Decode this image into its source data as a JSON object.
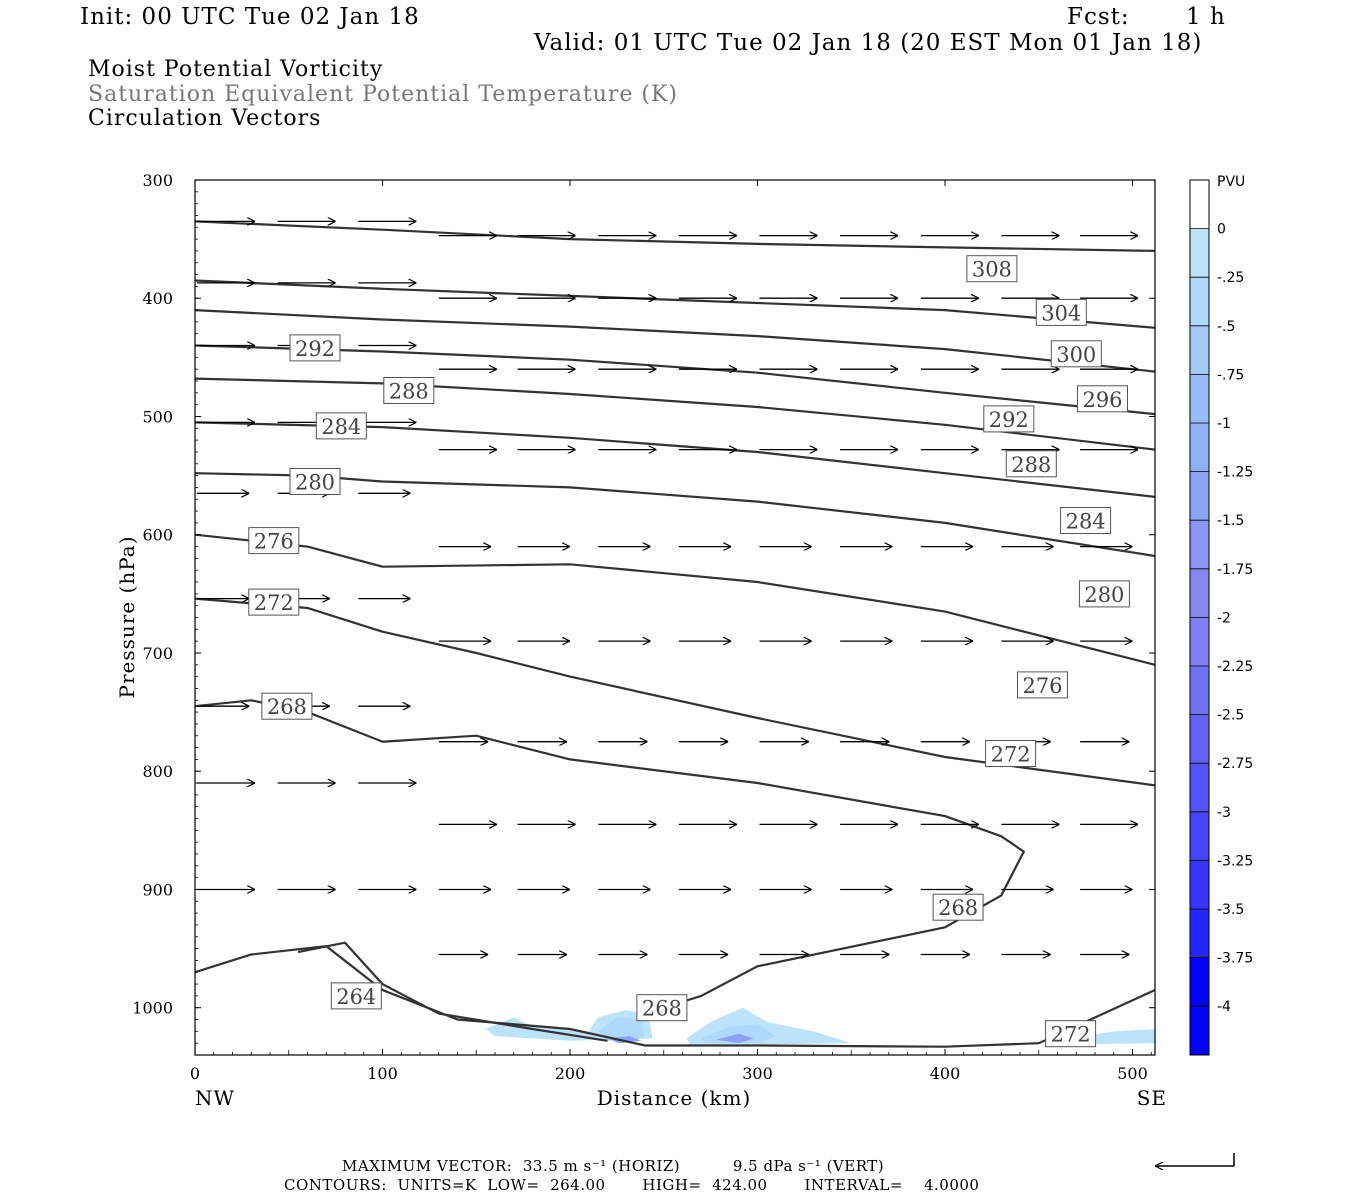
{
  "header": {
    "init": "Init: 00 UTC Tue 02 Jan 18",
    "fcst_label": "Fcst:",
    "fcst_value": "1 h",
    "valid": "Valid: 01 UTC Tue 02 Jan 18 (20 EST Mon 01 Jan 18)"
  },
  "fields": {
    "line1": "Moist Potential Vorticity",
    "line2": "Saturation Equivalent Potential Temperature (K)",
    "line3": "Circulation Vectors"
  },
  "footer": {
    "max_vector": "MAXIMUM VECTOR:  33.5 m s⁻¹ (HORIZ)          9.5 dPa s⁻¹ (VERT)",
    "contours": "CONTOURS:  UNITS=K  LOW=  264.00       HIGH=  424.00       INTERVAL=    4.0000"
  },
  "colors": {
    "contour": "#333333",
    "pv_light": "#bde3fb",
    "pv_mid": "#8f8ff2",
    "pv_dark": "#0000ff"
  },
  "chart_data": {
    "type": "cross-section",
    "xlabel": "Distance (km)",
    "ylabel": "Pressure (hPa)",
    "xlim": [
      0,
      512
    ],
    "ylim": [
      300,
      1040
    ],
    "y_reversed": true,
    "x_ticks": [
      "0",
      "100",
      "200",
      "300",
      "400",
      "500"
    ],
    "y_ticks": [
      "300",
      "400",
      "500",
      "600",
      "700",
      "800",
      "900",
      "1000"
    ],
    "x_end_labels": {
      "left": "NW",
      "right": "SE"
    },
    "colorbar": {
      "title": "PVU",
      "labels": [
        "0",
        "-.25",
        "-.5",
        "-.75",
        "-1",
        "-1.25",
        "-1.5",
        "-1.75",
        "-2",
        "-2.25",
        "-2.5",
        "-2.75",
        "-3",
        "-3.25",
        "-3.5",
        "-3.75",
        "-4"
      ],
      "colors": [
        "#ffffff",
        "#bde3fb",
        "#b0d8fa",
        "#a4cbf8",
        "#98bdf6",
        "#90b0f5",
        "#8ca2f4",
        "#8a95f3",
        "#8787f2",
        "#7f7ff3",
        "#7070f4",
        "#6262f6",
        "#5454f8",
        "#4545f9",
        "#3535fb",
        "#2424fc",
        "#0000ff"
      ]
    },
    "contours": [
      {
        "label": "308",
        "points": [
          [
            0,
            335
          ],
          [
            100,
            342
          ],
          [
            200,
            350
          ],
          [
            300,
            354
          ],
          [
            400,
            357
          ],
          [
            512,
            360
          ]
        ],
        "label_at": [
          425,
          375
        ]
      },
      {
        "label": "304",
        "points": [
          [
            0,
            385
          ],
          [
            100,
            392
          ],
          [
            200,
            398
          ],
          [
            300,
            404
          ],
          [
            400,
            410
          ],
          [
            512,
            425
          ]
        ],
        "label_at": [
          462,
          412
        ]
      },
      {
        "label": "300",
        "points": [
          [
            0,
            410
          ],
          [
            100,
            418
          ],
          [
            200,
            424
          ],
          [
            300,
            432
          ],
          [
            400,
            443
          ],
          [
            512,
            462
          ]
        ],
        "label_at": [
          470,
          447
        ]
      },
      {
        "label": "296",
        "points": [
          [
            0,
            440
          ],
          [
            100,
            445
          ],
          [
            200,
            452
          ],
          [
            300,
            463
          ],
          [
            400,
            480
          ],
          [
            512,
            498
          ]
        ],
        "label_at": [
          484,
          485
        ]
      },
      {
        "label": "292",
        "points": [
          [
            0,
            468
          ],
          [
            100,
            472
          ],
          [
            200,
            481
          ],
          [
            300,
            492
          ],
          [
            400,
            507
          ],
          [
            512,
            528
          ]
        ],
        "label_at": [
          434,
          502
        ]
      },
      {
        "label": "288",
        "points": [
          [
            0,
            505
          ],
          [
            100,
            509
          ],
          [
            200,
            518
          ],
          [
            300,
            530
          ],
          [
            400,
            548
          ],
          [
            512,
            568
          ]
        ],
        "label_at": [
          446,
          540
        ]
      },
      {
        "label": "284",
        "points": [
          [
            0,
            548
          ],
          [
            60,
            550
          ],
          [
            100,
            555
          ],
          [
            200,
            560
          ],
          [
            300,
            572
          ],
          [
            400,
            590
          ],
          [
            512,
            618
          ]
        ],
        "label_at": [
          475,
          588
        ]
      },
      {
        "label": "280",
        "points": [
          [
            0,
            600
          ],
          [
            60,
            610
          ],
          [
            100,
            627
          ],
          [
            200,
            625
          ],
          [
            300,
            640
          ],
          [
            400,
            665
          ],
          [
            512,
            710
          ]
        ],
        "label_at": [
          485,
          650
        ]
      },
      {
        "label": "276",
        "points": [
          [
            0,
            654
          ],
          [
            60,
            662
          ],
          [
            100,
            682
          ],
          [
            150,
            700
          ],
          [
            200,
            720
          ],
          [
            300,
            755
          ],
          [
            400,
            788
          ],
          [
            512,
            812
          ]
        ],
        "label_at": [
          452,
          727
        ]
      },
      {
        "label": "272",
        "points": [
          [
            0,
            745
          ],
          [
            30,
            740
          ],
          [
            60,
            750
          ],
          [
            100,
            775
          ],
          [
            150,
            770
          ],
          [
            200,
            790
          ],
          [
            300,
            810
          ],
          [
            400,
            838
          ],
          [
            430,
            855
          ],
          [
            442,
            868
          ],
          [
            430,
            905
          ],
          [
            400,
            932
          ],
          [
            300,
            965
          ],
          [
            270,
            990
          ],
          [
            250,
            1000
          ]
        ],
        "label_at": [
          435,
          785
        ]
      },
      {
        "label": "268",
        "points": [
          [
            0,
            970
          ],
          [
            30,
            955
          ],
          [
            70,
            948
          ],
          [
            100,
            985
          ],
          [
            140,
            1010
          ],
          [
            200,
            1018
          ],
          [
            240,
            1032
          ],
          [
            300,
            1032
          ],
          [
            400,
            1033
          ],
          [
            450,
            1030
          ],
          [
            512,
            985
          ]
        ],
        "label_at": [
          407,
          915
        ]
      },
      {
        "label": "264",
        "points": [
          [
            55,
            953
          ],
          [
            80,
            945
          ],
          [
            100,
            980
          ],
          [
            130,
            1005
          ],
          [
            180,
            1018
          ],
          [
            220,
            1028
          ]
        ],
        "label_at": [
          86,
          990
        ]
      }
    ],
    "contour_labels": [
      {
        "label": "292",
        "at": [
          64,
          442
        ]
      },
      {
        "label": "288",
        "at": [
          114,
          478
        ]
      },
      {
        "label": "284",
        "at": [
          78,
          508
        ]
      },
      {
        "label": "280",
        "at": [
          64,
          555
        ]
      },
      {
        "label": "276",
        "at": [
          42,
          605
        ]
      },
      {
        "label": "272",
        "at": [
          42,
          657
        ]
      },
      {
        "label": "268",
        "at": [
          49,
          745
        ]
      },
      {
        "label": "268",
        "at": [
          249,
          1000
        ]
      },
      {
        "label": "272",
        "at": [
          467,
          1022
        ]
      }
    ],
    "pv_regions": [
      {
        "level": "-0.25",
        "points": [
          [
            155,
            1018
          ],
          [
            170,
            1008
          ],
          [
            180,
            1016
          ],
          [
            210,
            1020
          ],
          [
            215,
            1008
          ],
          [
            230,
            1002
          ],
          [
            242,
            1006
          ],
          [
            244,
            1026
          ],
          [
            200,
            1028
          ],
          [
            160,
            1024
          ]
        ]
      },
      {
        "level": "-0.5",
        "points": [
          [
            215,
            1020
          ],
          [
            225,
            1008
          ],
          [
            238,
            1010
          ],
          [
            240,
            1026
          ],
          [
            220,
            1028
          ]
        ]
      },
      {
        "level": "-1.5",
        "points": [
          [
            220,
            1026
          ],
          [
            232,
            1024
          ],
          [
            238,
            1028
          ],
          [
            226,
            1030
          ]
        ]
      },
      {
        "level": "-0.25",
        "points": [
          [
            262,
            1026
          ],
          [
            275,
            1012
          ],
          [
            292,
            1000
          ],
          [
            305,
            1012
          ],
          [
            330,
            1020
          ],
          [
            350,
            1030
          ],
          [
            300,
            1031
          ],
          [
            264,
            1031
          ]
        ]
      },
      {
        "level": "-0.5",
        "points": [
          [
            270,
            1026
          ],
          [
            285,
            1016
          ],
          [
            300,
            1014
          ],
          [
            310,
            1024
          ],
          [
            300,
            1030
          ],
          [
            272,
            1030
          ]
        ]
      },
      {
        "level": "-1.5",
        "points": [
          [
            278,
            1027
          ],
          [
            290,
            1022
          ],
          [
            298,
            1026
          ],
          [
            290,
            1030
          ]
        ]
      },
      {
        "level": "-0.25",
        "points": [
          [
            460,
            1028
          ],
          [
            490,
            1020
          ],
          [
            512,
            1018
          ],
          [
            512,
            1030
          ],
          [
            470,
            1031
          ]
        ]
      }
    ],
    "vector_rows": [
      {
        "p": 335,
        "xs": [
          0,
          43,
          86
        ],
        "dx": 20,
        "dy": 0
      },
      {
        "p": 347,
        "xs": [
          129,
          171,
          214,
          257,
          300,
          343,
          386,
          429,
          471
        ],
        "dx": 20,
        "dy": 0
      },
      {
        "p": 387,
        "xs": [
          0,
          43,
          86
        ],
        "dx": 20,
        "dy": 0
      },
      {
        "p": 400,
        "xs": [
          129,
          171,
          214,
          257,
          300,
          343,
          386,
          429,
          471
        ],
        "dx": 20,
        "dy": 0
      },
      {
        "p": 440,
        "xs": [
          0,
          43,
          86
        ],
        "dx": 20,
        "dy": 0
      },
      {
        "p": 460,
        "xs": [
          129,
          171,
          214,
          257,
          300,
          343,
          386,
          429,
          471
        ],
        "dx": 20,
        "dy": 0
      },
      {
        "p": 505,
        "xs": [
          0,
          43,
          86
        ],
        "dx": 20,
        "dy": 0
      },
      {
        "p": 528,
        "xs": [
          129,
          171,
          214,
          257,
          300,
          343,
          386,
          429,
          471
        ],
        "dx": 20,
        "dy": 0
      },
      {
        "p": 565,
        "xs": [
          0,
          43,
          86
        ],
        "dx": 18,
        "dy": 0
      },
      {
        "p": 610,
        "xs": [
          129,
          171,
          214,
          257,
          300,
          343,
          386,
          429,
          471
        ],
        "dx": 18,
        "dy": 0
      },
      {
        "p": 654,
        "xs": [
          0,
          43,
          86
        ],
        "dx": 18,
        "dy": 0
      },
      {
        "p": 690,
        "xs": [
          129,
          171,
          214,
          257,
          300,
          343,
          386,
          429,
          471
        ],
        "dx": 18,
        "dy": 0
      },
      {
        "p": 745,
        "xs": [
          0,
          43,
          86
        ],
        "dx": 18,
        "dy": 0
      },
      {
        "p": 775,
        "xs": [
          129,
          171,
          214,
          257,
          300,
          343,
          386,
          429,
          471
        ],
        "dx": 17,
        "dy": 0
      },
      {
        "p": 810,
        "xs": [
          0,
          43,
          86
        ],
        "dx": 20,
        "dy": 0
      },
      {
        "p": 845,
        "xs": [
          129,
          171,
          214,
          257,
          300,
          343,
          386,
          429,
          471
        ],
        "dx": 20,
        "dy": 0
      },
      {
        "p": 900,
        "xs": [
          0,
          43,
          86
        ],
        "dx": 20,
        "dy": 0
      },
      {
        "p": 900,
        "xs": [
          129,
          171,
          214,
          257,
          300,
          343,
          386,
          429,
          471
        ],
        "dx": 18,
        "dy": 0
      },
      {
        "p": 955,
        "xs": [
          129,
          171,
          214,
          257,
          300,
          343,
          386,
          429,
          471
        ],
        "dx": 17,
        "dy": 0
      }
    ]
  }
}
